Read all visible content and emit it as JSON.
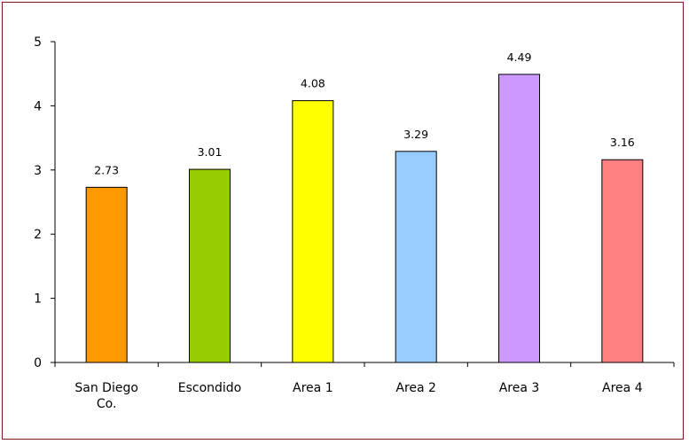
{
  "chart_data": {
    "type": "bar",
    "categories": [
      [
        "San Diego",
        "Co."
      ],
      [
        "Escondido"
      ],
      [
        "Area 1"
      ],
      [
        "Area 2"
      ],
      [
        "Area 3"
      ],
      [
        "Area 4"
      ]
    ],
    "values": [
      2.73,
      3.01,
      4.08,
      3.29,
      4.49,
      3.16
    ],
    "value_labels": [
      "2.73",
      "3.01",
      "4.08",
      "3.29",
      "4.49",
      "3.16"
    ],
    "colors": [
      "#FF9900",
      "#99CC00",
      "#FFFF00",
      "#99CCFF",
      "#CC99FF",
      "#FF8080"
    ],
    "yticks": [
      "0",
      "1",
      "2",
      "3",
      "4",
      "5"
    ],
    "ylim": [
      0,
      5
    ],
    "grid": false,
    "legend": "none",
    "title": "",
    "xlabel": "",
    "ylabel": ""
  },
  "style": {
    "frame_color": "#7a1a1a",
    "bar_outline": "#000000",
    "axis_color": "#000000"
  }
}
